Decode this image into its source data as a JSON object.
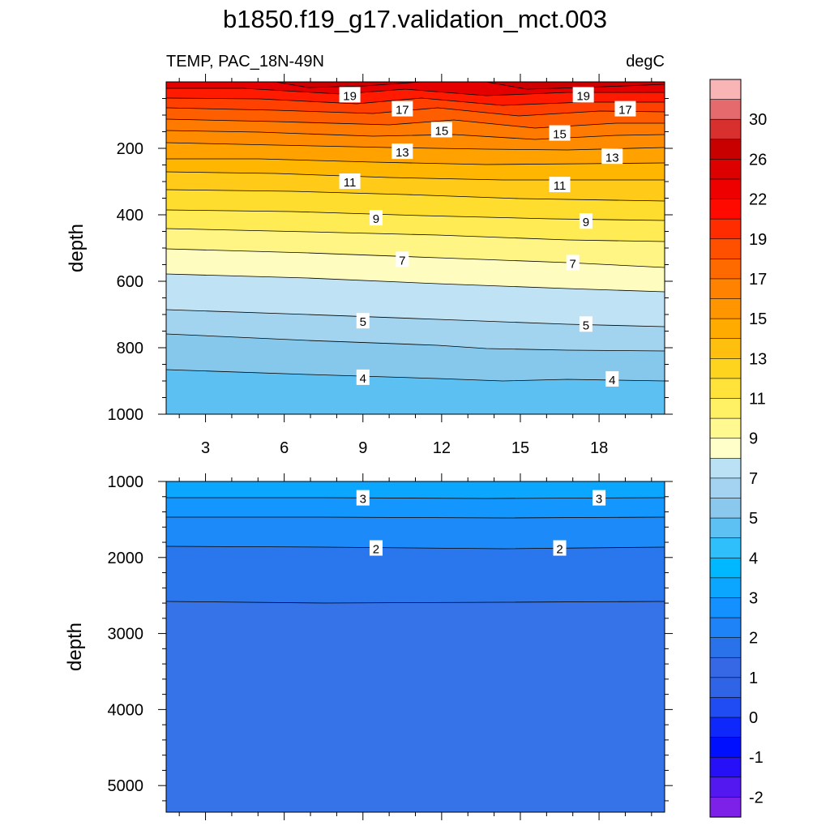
{
  "chart_data": {
    "type": "contour",
    "title": "b1850.f19_g17.validation_mct.003",
    "left_subtitle": "TEMP, PAC_18N-49N",
    "right_subtitle": "degC",
    "ylabel": "depth",
    "x_ticks": [
      3,
      6,
      9,
      12,
      15,
      18
    ],
    "xlim": [
      1.5,
      20.5
    ],
    "panels": [
      {
        "id": "upper",
        "ylim": [
          0,
          1000
        ],
        "y_ticks": [
          200,
          400,
          600,
          800,
          1000
        ],
        "x_ticks": [
          3,
          6,
          9,
          12,
          15,
          18
        ],
        "contour_labels": [
          {
            "x": 8.5,
            "depth": 40,
            "text": "19"
          },
          {
            "x": 17.4,
            "depth": 40,
            "text": "19"
          },
          {
            "x": 10.5,
            "depth": 82,
            "text": "17"
          },
          {
            "x": 19.0,
            "depth": 82,
            "text": "17"
          },
          {
            "x": 12.0,
            "depth": 145,
            "text": "15"
          },
          {
            "x": 16.5,
            "depth": 155,
            "text": "15"
          },
          {
            "x": 10.5,
            "depth": 210,
            "text": "13"
          },
          {
            "x": 18.5,
            "depth": 225,
            "text": "13"
          },
          {
            "x": 8.5,
            "depth": 300,
            "text": "11"
          },
          {
            "x": 16.5,
            "depth": 310,
            "text": "11"
          },
          {
            "x": 9.5,
            "depth": 410,
            "text": "9"
          },
          {
            "x": 17.5,
            "depth": 420,
            "text": "9"
          },
          {
            "x": 10.5,
            "depth": 535,
            "text": "7"
          },
          {
            "x": 17.0,
            "depth": 545,
            "text": "7"
          },
          {
            "x": 9.0,
            "depth": 720,
            "text": "5"
          },
          {
            "x": 17.5,
            "depth": 730,
            "text": "5"
          },
          {
            "x": 9.0,
            "depth": 890,
            "text": "4"
          },
          {
            "x": 18.5,
            "depth": 895,
            "text": "4"
          }
        ]
      },
      {
        "id": "lower",
        "ylim": [
          1000,
          5350
        ],
        "y_ticks": [
          1000,
          2000,
          3000,
          4000,
          5000
        ],
        "contour_labels": [
          {
            "x": 9.0,
            "depth": 1220,
            "text": "3"
          },
          {
            "x": 18.0,
            "depth": 1220,
            "text": "3"
          },
          {
            "x": 9.5,
            "depth": 1880,
            "text": "2"
          },
          {
            "x": 16.5,
            "depth": 1880,
            "text": "2"
          }
        ]
      }
    ],
    "colorbar": {
      "labels": [
        "30",
        "26",
        "22",
        "19",
        "17",
        "15",
        "13",
        "11",
        "9",
        "7",
        "5",
        "4",
        "3",
        "2",
        "1",
        "0",
        "-1",
        "-2"
      ],
      "colors": [
        "#f9b4b6",
        "#e56a6e",
        "#d7302e",
        "#c80000",
        "#dc0000",
        "#ee0000",
        "#ff0a00",
        "#ff2c00",
        "#ff5000",
        "#ff6a00",
        "#ff8200",
        "#ff9600",
        "#ffab00",
        "#ffbf0f",
        "#ffd41e",
        "#ffe33a",
        "#fff064",
        "#fff98f",
        "#ffffc9",
        "#bbe1f4",
        "#a3d3f0",
        "#8ac8ee",
        "#5ec1f4",
        "#2fc0fc",
        "#00b8ff",
        "#0aa6ff",
        "#1490ff",
        "#1d83f6",
        "#2a72ea",
        "#3668e6",
        "#3064e6",
        "#1f4cf3",
        "#0e28fb",
        "#0010ff",
        "#2510f8",
        "#5318f0",
        "#7d20e8"
      ]
    }
  }
}
